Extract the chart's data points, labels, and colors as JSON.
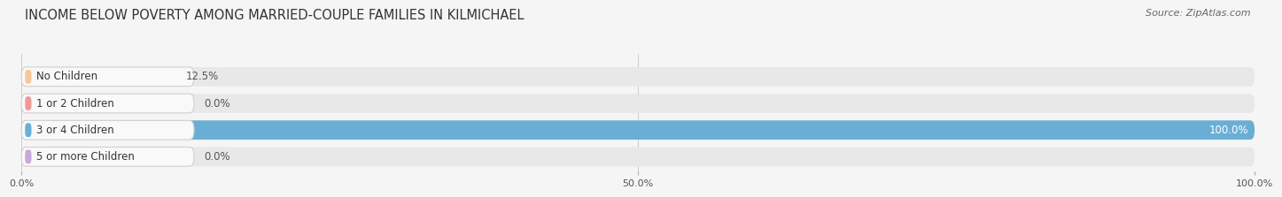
{
  "title": "INCOME BELOW POVERTY AMONG MARRIED-COUPLE FAMILIES IN KILMICHAEL",
  "source": "Source: ZipAtlas.com",
  "categories": [
    "No Children",
    "1 or 2 Children",
    "3 or 4 Children",
    "5 or more Children"
  ],
  "values": [
    12.5,
    0.0,
    100.0,
    0.0
  ],
  "bar_colors": [
    "#f5c898",
    "#f09898",
    "#6aaed6",
    "#c8a8d8"
  ],
  "bg_color": "#f5f5f5",
  "bar_bg_color": "#e8e8e8",
  "label_bg_color": "#f9f9f9",
  "xlim": [
    0,
    100
  ],
  "xticks": [
    0,
    50,
    100
  ],
  "xtick_labels": [
    "0.0%",
    "50.0%",
    "100.0%"
  ],
  "title_fontsize": 10.5,
  "label_fontsize": 8.5,
  "value_fontsize": 8.5,
  "source_fontsize": 8
}
